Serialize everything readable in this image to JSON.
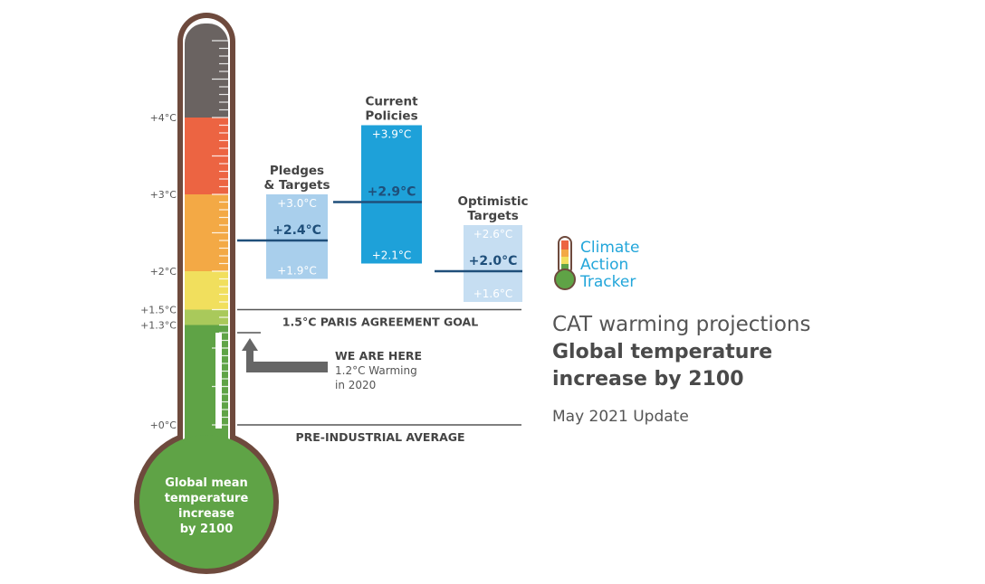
{
  "chart_data": {
    "type": "thermometer-range",
    "ylim": [
      0,
      5.2
    ],
    "y_ticks": [
      {
        "value": 0.0,
        "label": "+0°C"
      },
      {
        "value": 1.3,
        "label": "+1.3°C"
      },
      {
        "value": 1.5,
        "label": "+1.5°C"
      },
      {
        "value": 2.0,
        "label": "+2°C"
      },
      {
        "value": 3.0,
        "label": "+3°C"
      },
      {
        "value": 4.0,
        "label": "+4°C"
      }
    ],
    "color_bands": [
      {
        "from": 0.0,
        "to": 1.3,
        "color": "#5fa346"
      },
      {
        "from": 1.3,
        "to": 1.5,
        "color": "#a9c95b"
      },
      {
        "from": 1.5,
        "to": 2.0,
        "color": "#f1df5d"
      },
      {
        "from": 2.0,
        "to": 3.0,
        "color": "#f3a945"
      },
      {
        "from": 3.0,
        "to": 4.0,
        "color": "#ec6442"
      },
      {
        "from": 4.0,
        "to": 5.2,
        "color": "#6a6361"
      }
    ],
    "series": [
      {
        "name": "Pledges & Targets",
        "title_lines": [
          "Pledges",
          "& Targets"
        ],
        "low": 1.9,
        "mid": 2.4,
        "high": 3.0,
        "low_label": "+1.9°C",
        "mid_label": "+2.4°C",
        "high_label": "+3.0°C",
        "color": "#a9cfec"
      },
      {
        "name": "Current Policies",
        "title_lines": [
          "Current",
          "Policies"
        ],
        "low": 2.1,
        "mid": 2.9,
        "high": 3.9,
        "low_label": "+2.1°C",
        "mid_label": "+2.9°C",
        "high_label": "+3.9°C",
        "color": "#1ea1d9"
      },
      {
        "name": "Optimistic Targets",
        "title_lines": [
          "Optimistic",
          "Targets"
        ],
        "low": 1.6,
        "mid": 2.0,
        "high": 2.6,
        "low_label": "+1.6°C",
        "mid_label": "+2.0°C",
        "high_label": "+2.6°C",
        "color": "#c6def2"
      }
    ],
    "reference_lines": [
      {
        "value": 1.5,
        "label": "1.5°C PARIS AGREEMENT GOAL"
      },
      {
        "value": 0.0,
        "label": "PRE-INDUSTRIAL AVERAGE"
      }
    ],
    "current_marker": {
      "value": 1.2,
      "label": "WE ARE HERE",
      "detail_lines": [
        "1.2°C Warming",
        "in 2020"
      ]
    },
    "bulb_lines": [
      "Global mean",
      "temperature",
      "increase",
      "by 2100"
    ]
  },
  "brand": {
    "lines": [
      "Climate",
      "Action",
      "Tracker"
    ]
  },
  "side_text": {
    "title": "CAT warming projections",
    "subtitle_lines": [
      "Global temperature",
      "increase by 2100"
    ],
    "update": "May 2021 Update"
  },
  "colors": {
    "outline": "#6e4a3d",
    "column_mid_line": "#1f4f7a",
    "reference_line": "#555555",
    "arrow": "#666666",
    "brand_blue": "#23a6da"
  }
}
